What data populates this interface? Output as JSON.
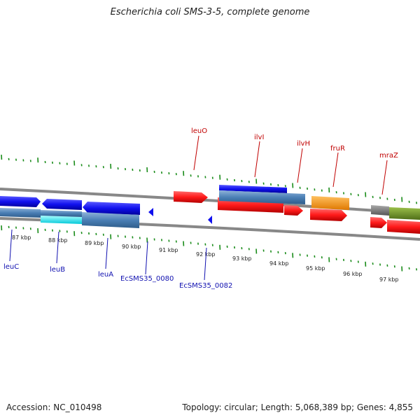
{
  "title": "Escherichia coli SMS-3-5, complete genome",
  "footer": {
    "accession": "Accession: NC_010498",
    "summary": "Topology: circular; Length: 5,068,389 bp; Genes: 4,855"
  },
  "colors": {
    "tick": "#1a8c1a",
    "backbone": "#888888",
    "forward_gene": "#ff1a1a",
    "reverse_gene": "#1010ee",
    "label_forward": "#c00000",
    "label_reverse": "#1010b0",
    "cds_band": "#4a7fb5",
    "cyan_feature": "#00e5ee",
    "orange_feature": "#ff9900",
    "olive_feature": "#6b8e23",
    "grey_feature": "#777777"
  },
  "kbp_labels": [
    "87 kbp",
    "88 kbp",
    "89 kbp",
    "90 kbp",
    "91 kbp",
    "92 kbp",
    "93 kbp",
    "94 kbp",
    "95 kbp",
    "96 kbp",
    "97 kbp"
  ],
  "forward_labels": [
    "leuO",
    "ilvI",
    "ilvH",
    "fruR",
    "mraZ"
  ],
  "reverse_labels": [
    "leuC",
    "leuB",
    "leuA",
    "EcSMS35_0080",
    "EcSMS35_0082"
  ]
}
